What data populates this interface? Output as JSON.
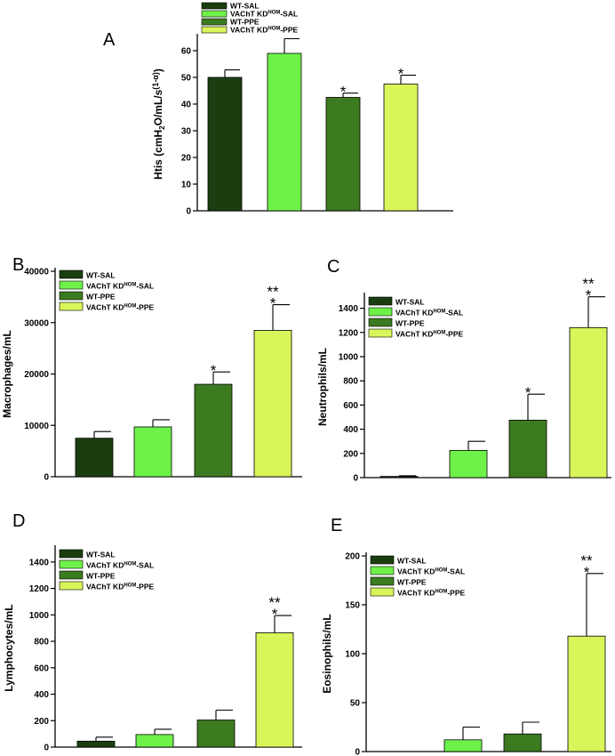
{
  "figure": {
    "series_names": [
      "WT-SAL",
      "VAChT KD^HOM-SAL",
      "WT-PPE",
      "VAChT KD^HOM-PPE"
    ],
    "colors": {
      "WT-SAL": "#1b3e10",
      "VAChT KD^HOM-SAL": "#6ef24a",
      "WT-PPE": "#3c7a20",
      "VAChT KD^HOM-PPE": "#d8f55a"
    }
  },
  "chart_data": [
    {
      "panel": "A",
      "type": "bar",
      "categories": [
        "WT-SAL",
        "VAChT KD^HOM-SAL",
        "WT-PPE",
        "VAChT KD^HOM-PPE"
      ],
      "values": [
        50.0,
        59.0,
        42.5,
        47.5
      ],
      "errors": [
        2.8,
        5.5,
        1.6,
        3.3
      ],
      "significance": [
        "",
        "",
        "*",
        "*"
      ],
      "ylabel": "Htis (cmH2O/mL/s(1-α))",
      "ylim": [
        0,
        65
      ],
      "yticks": [
        0,
        10,
        20,
        30,
        40,
        50,
        60
      ],
      "legend": "top-left"
    },
    {
      "panel": "B",
      "type": "bar",
      "categories": [
        "WT-SAL",
        "VAChT KD^HOM-SAL",
        "WT-PPE",
        "VAChT KD^HOM-PPE"
      ],
      "values": [
        7500,
        9700,
        18000,
        28500
      ],
      "errors": [
        1300,
        1400,
        2400,
        5000
      ],
      "significance": [
        "",
        "",
        "*",
        "**\n*"
      ],
      "ylabel": "Macrophages/mL",
      "ylim": [
        0,
        40000
      ],
      "yticks": [
        0,
        10000,
        20000,
        30000,
        40000
      ],
      "legend": "top-left"
    },
    {
      "panel": "C",
      "type": "bar",
      "categories": [
        "WT-SAL",
        "VAChT KD^HOM-SAL",
        "WT-PPE",
        "VAChT KD^HOM-PPE"
      ],
      "values": [
        10,
        225,
        475,
        1240
      ],
      "errors": [
        5,
        75,
        215,
        255
      ],
      "significance": [
        "",
        "",
        "*",
        "**\n*"
      ],
      "ylabel": "Neutrophils/mL",
      "ylim": [
        0,
        1500
      ],
      "yticks": [
        0,
        200,
        400,
        600,
        800,
        1000,
        1200,
        1400
      ],
      "legend": "top-left"
    },
    {
      "panel": "D",
      "type": "bar",
      "categories": [
        "WT-SAL",
        "VAChT KD^HOM-SAL",
        "WT-PPE",
        "VAChT KD^HOM-PPE"
      ],
      "values": [
        45,
        95,
        205,
        865
      ],
      "errors": [
        30,
        40,
        75,
        130
      ],
      "significance": [
        "",
        "",
        "",
        "**\n*"
      ],
      "ylabel": "Lymphocytes/mL",
      "ylim": [
        0,
        1500
      ],
      "yticks": [
        0,
        200,
        400,
        600,
        800,
        1000,
        1200,
        1400
      ],
      "legend": "top-left"
    },
    {
      "panel": "E",
      "type": "bar",
      "categories": [
        "WT-SAL",
        "VAChT KD^HOM-SAL",
        "WT-PPE",
        "VAChT KD^HOM-PPE"
      ],
      "values": [
        0,
        12,
        18,
        118
      ],
      "errors": [
        0,
        13,
        12,
        64
      ],
      "significance": [
        "",
        "",
        "",
        "**\n*"
      ],
      "ylabel": "Eosinophils/mL",
      "ylim": [
        0,
        200
      ],
      "yticks": [
        0,
        50,
        100,
        150,
        200
      ],
      "legend": "top-left"
    }
  ]
}
